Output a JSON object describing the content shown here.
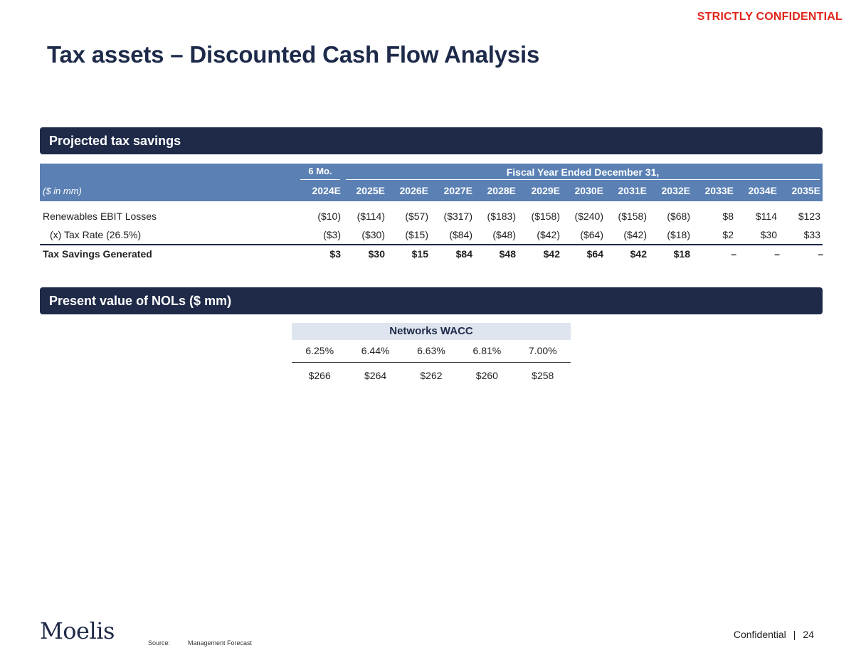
{
  "confidential_label": "STRICTLY CONFIDENTIAL",
  "title": "Tax assets – Discounted Cash Flow Analysis",
  "section1": {
    "heading": "Projected tax savings",
    "header_6mo": "6 Mo.",
    "header_fy": "Fiscal Year Ended December 31,",
    "units": "($ in mm)",
    "years": [
      "2024E",
      "2025E",
      "2026E",
      "2027E",
      "2028E",
      "2029E",
      "2030E",
      "2031E",
      "2032E",
      "2033E",
      "2034E",
      "2035E"
    ],
    "rows": [
      {
        "label": "Renewables EBIT Losses",
        "values": [
          "($10)",
          "($114)",
          "($57)",
          "($317)",
          "($183)",
          "($158)",
          "($240)",
          "($158)",
          "($68)",
          "$8",
          "$114",
          "$123"
        ]
      },
      {
        "label": "(x) Tax Rate (26.5%)",
        "values": [
          "($3)",
          "($30)",
          "($15)",
          "($84)",
          "($48)",
          "($42)",
          "($64)",
          "($42)",
          "($18)",
          "$2",
          "$30",
          "$33"
        ]
      },
      {
        "label": "Tax Savings Generated",
        "values": [
          "$3",
          "$30",
          "$15",
          "$84",
          "$48",
          "$42",
          "$64",
          "$42",
          "$18",
          "–",
          "–",
          "–"
        ]
      }
    ]
  },
  "section2": {
    "heading": "Present value of NOLs ($ mm)",
    "table_header": "Networks WACC",
    "rates": [
      "6.25%",
      "6.44%",
      "6.63%",
      "6.81%",
      "7.00%"
    ],
    "values": [
      "$266",
      "$264",
      "$262",
      "$260",
      "$258"
    ]
  },
  "footer": {
    "logo": "Moelis",
    "source_label": "Source:",
    "source_value": "Management Forecast",
    "confidential": "Confidential",
    "separator": "|",
    "page_number": "24"
  }
}
